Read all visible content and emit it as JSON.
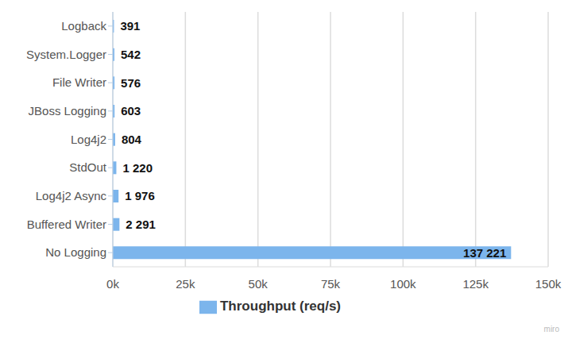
{
  "chart_data": {
    "type": "bar",
    "orientation": "horizontal",
    "categories": [
      "Logback",
      "System.Logger",
      "File Writer",
      "JBoss Logging",
      "Log4j2",
      "StdOut",
      "Log4j2 Async",
      "Buffered Writer",
      "No Logging"
    ],
    "series": [
      {
        "name": "Throughput (req/s)",
        "color": "#7cb5ec",
        "values": [
          391,
          542,
          576,
          603,
          804,
          1220,
          1976,
          2291,
          137221
        ],
        "value_labels": [
          "391",
          "542",
          "576",
          "603",
          "804",
          "1 220",
          "1 976",
          "2 291",
          "137 221"
        ]
      }
    ],
    "xlim": [
      0,
      150000
    ],
    "xticks": [
      {
        "value": 0,
        "label": "0k"
      },
      {
        "value": 25000,
        "label": "25k"
      },
      {
        "value": 50000,
        "label": "50k"
      },
      {
        "value": 75000,
        "label": "75k"
      },
      {
        "value": 100000,
        "label": "100k"
      },
      {
        "value": 125000,
        "label": "125k"
      },
      {
        "value": 150000,
        "label": "150k"
      }
    ],
    "grid": true,
    "data_labels": true,
    "legend": "bottom",
    "annotations": [
      "miro"
    ]
  }
}
